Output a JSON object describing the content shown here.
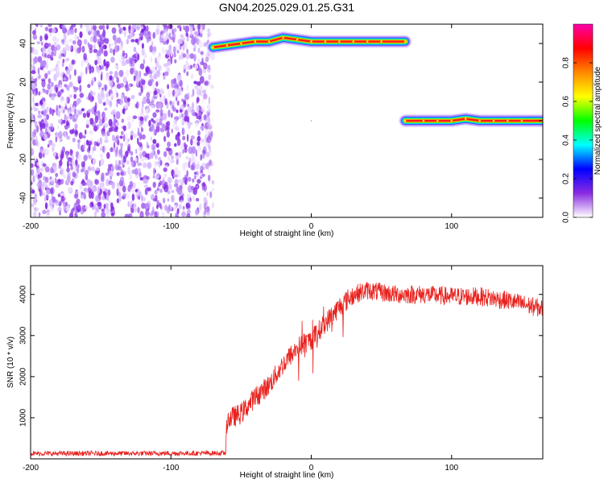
{
  "title": "GN04.2025.029.01.25.G31",
  "chart_data": [
    {
      "type": "heatmap",
      "xlabel": "Height of straight line (km)",
      "ylabel": "Frequency (Hz)",
      "xlim": [
        -200,
        165
      ],
      "ylim": [
        -50,
        50
      ],
      "xticks": [
        -200,
        -100,
        0,
        100
      ],
      "yticks": [
        -40,
        -20,
        0,
        20,
        40
      ],
      "noise_region": {
        "x": [
          -200,
          -70
        ],
        "y": [
          -50,
          50
        ]
      },
      "ridges": [
        {
          "x": [
            -70,
            -60,
            -50,
            -40,
            -30,
            -20,
            -10,
            0,
            10,
            20,
            30,
            40,
            50,
            67
          ],
          "y": [
            38,
            39,
            40,
            41,
            41,
            43,
            42,
            41,
            41,
            41,
            41,
            41,
            41,
            41
          ]
        },
        {
          "x": [
            67,
            80,
            90,
            100,
            110,
            120,
            130,
            140,
            150,
            165
          ],
          "y": [
            0,
            0,
            0,
            0,
            1,
            0,
            0,
            0,
            0,
            0
          ]
        }
      ],
      "colorbar": {
        "label": "Normalized spectral amplitude",
        "range": [
          0,
          1
        ],
        "ticks": [
          0.0,
          0.2,
          0.4,
          0.6,
          0.8
        ],
        "tick_labels": [
          "0.0",
          "0.2",
          "0.4",
          "0.6",
          "0.8"
        ]
      },
      "colormap": [
        "#ffffff",
        "#8a2be2",
        "#0000ff",
        "#00ffff",
        "#00ff00",
        "#ffff00",
        "#ff8800",
        "#ff0000",
        "#ff00aa"
      ]
    },
    {
      "type": "line",
      "xlabel": "Height of straight line (km)",
      "ylabel": "SNR (10 * v/v)",
      "xlim": [
        -200,
        165
      ],
      "ylim": [
        0,
        4700
      ],
      "xticks": [
        -200,
        -100,
        0,
        100
      ],
      "yticks": [
        1000,
        2000,
        3000,
        4000
      ],
      "color": "#e8211d",
      "series": [
        {
          "x": [
            -200,
            -150,
            -100,
            -61,
            -60,
            -50,
            -40,
            -30,
            -20,
            -10,
            0,
            10,
            20,
            30,
            40,
            60,
            80,
            100,
            120,
            140,
            165
          ],
          "y": [
            130,
            130,
            135,
            140,
            950,
            1100,
            1500,
            1800,
            2300,
            2700,
            2900,
            3300,
            3700,
            4000,
            4100,
            4000,
            4000,
            3950,
            3950,
            3850,
            3650
          ]
        }
      ]
    }
  ]
}
